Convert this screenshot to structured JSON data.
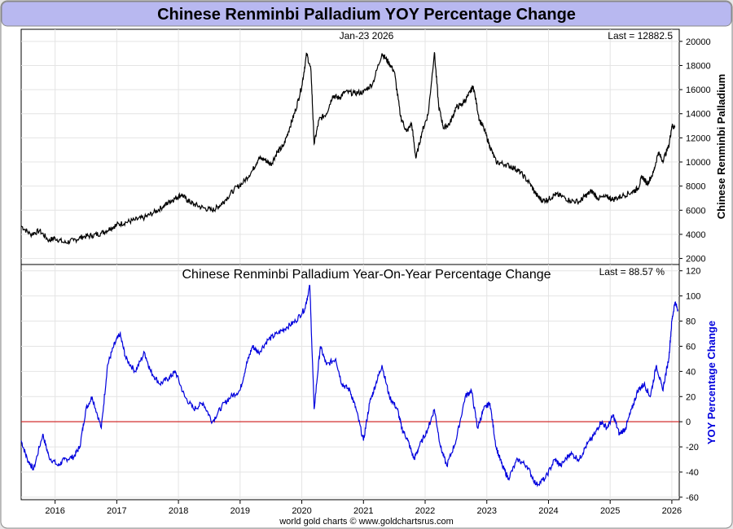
{
  "title": "Chinese Renminbi Palladium YOY Percentage Change",
  "footer": "world gold charts © www.goldchartsrus.com",
  "colors": {
    "price_line": "#000000",
    "yoy_line": "#0000dd",
    "zero_line": "#cc0000",
    "title_bar": "#b8b8f0",
    "grid": "#e4e4e4"
  },
  "chart_data": [
    {
      "type": "line",
      "panel": "top",
      "date_label": "Jan-23  2026",
      "last_label": "Last = 12882.5",
      "ylabel": "Chinese Renminbi Palladium",
      "ylim": [
        1500,
        21000
      ],
      "yticks": [
        2000,
        4000,
        6000,
        8000,
        10000,
        12000,
        14000,
        16000,
        18000,
        20000
      ],
      "series": [
        {
          "values": [
            [
              2015.45,
              4700
            ],
            [
              2015.6,
              4000
            ],
            [
              2015.75,
              4300
            ],
            [
              2015.9,
              3500
            ],
            [
              2016.0,
              3700
            ],
            [
              2016.15,
              3300
            ],
            [
              2016.3,
              3500
            ],
            [
              2016.45,
              3800
            ],
            [
              2016.6,
              3900
            ],
            [
              2016.75,
              4100
            ],
            [
              2016.9,
              4500
            ],
            [
              2017.0,
              4800
            ],
            [
              2017.15,
              5000
            ],
            [
              2017.3,
              5200
            ],
            [
              2017.45,
              5400
            ],
            [
              2017.6,
              5800
            ],
            [
              2017.75,
              6300
            ],
            [
              2017.85,
              6700
            ],
            [
              2017.95,
              7000
            ],
            [
              2018.05,
              7300
            ],
            [
              2018.15,
              6800
            ],
            [
              2018.25,
              6500
            ],
            [
              2018.4,
              6200
            ],
            [
              2018.55,
              6000
            ],
            [
              2018.65,
              6300
            ],
            [
              2018.75,
              6800
            ],
            [
              2018.9,
              7700
            ],
            [
              2019.05,
              8300
            ],
            [
              2019.2,
              9300
            ],
            [
              2019.3,
              10300
            ],
            [
              2019.4,
              10200
            ],
            [
              2019.5,
              9800
            ],
            [
              2019.6,
              10800
            ],
            [
              2019.7,
              11300
            ],
            [
              2019.8,
              12800
            ],
            [
              2019.9,
              14300
            ],
            [
              2020.0,
              16300
            ],
            [
              2020.08,
              19000
            ],
            [
              2020.15,
              17500
            ],
            [
              2020.2,
              11500
            ],
            [
              2020.28,
              13500
            ],
            [
              2020.4,
              14000
            ],
            [
              2020.5,
              15500
            ],
            [
              2020.6,
              15300
            ],
            [
              2020.7,
              15800
            ],
            [
              2020.85,
              15700
            ],
            [
              2021.0,
              15800
            ],
            [
              2021.15,
              16500
            ],
            [
              2021.3,
              19000
            ],
            [
              2021.4,
              18300
            ],
            [
              2021.5,
              17500
            ],
            [
              2021.6,
              13800
            ],
            [
              2021.7,
              12500
            ],
            [
              2021.78,
              13200
            ],
            [
              2021.85,
              10300
            ],
            [
              2021.95,
              12500
            ],
            [
              2022.05,
              14000
            ],
            [
              2022.15,
              19100
            ],
            [
              2022.22,
              14600
            ],
            [
              2022.3,
              12800
            ],
            [
              2022.4,
              13200
            ],
            [
              2022.5,
              14500
            ],
            [
              2022.6,
              14800
            ],
            [
              2022.7,
              15500
            ],
            [
              2022.78,
              16300
            ],
            [
              2022.88,
              13500
            ],
            [
              2022.95,
              12800
            ],
            [
              2023.05,
              11300
            ],
            [
              2023.15,
              10000
            ],
            [
              2023.3,
              9800
            ],
            [
              2023.45,
              9500
            ],
            [
              2023.55,
              9100
            ],
            [
              2023.7,
              8200
            ],
            [
              2023.8,
              7300
            ],
            [
              2023.9,
              6800
            ],
            [
              2024.0,
              6900
            ],
            [
              2024.1,
              7300
            ],
            [
              2024.2,
              7200
            ],
            [
              2024.35,
              6800
            ],
            [
              2024.5,
              6700
            ],
            [
              2024.6,
              7200
            ],
            [
              2024.7,
              7600
            ],
            [
              2024.8,
              7000
            ],
            [
              2024.95,
              7100
            ],
            [
              2025.05,
              6900
            ],
            [
              2025.2,
              7200
            ],
            [
              2025.35,
              7500
            ],
            [
              2025.45,
              7800
            ],
            [
              2025.52,
              8800
            ],
            [
              2025.6,
              8200
            ],
            [
              2025.7,
              9100
            ],
            [
              2025.78,
              10800
            ],
            [
              2025.85,
              10100
            ],
            [
              2025.95,
              11300
            ],
            [
              2026.0,
              13000
            ],
            [
              2026.05,
              12882
            ]
          ]
        }
      ]
    },
    {
      "type": "line",
      "panel": "bottom",
      "title": "Chinese Renminbi Palladium Year-On-Year Percentage Change",
      "last_label": "Last = 88.57 %",
      "ylabel": "YOY Percentage Change",
      "ylim": [
        -62,
        125
      ],
      "yticks": [
        -60,
        -40,
        -20,
        0,
        20,
        40,
        60,
        80,
        100,
        120
      ],
      "reference_line": 0,
      "x_ticks": [
        2016,
        2017,
        2018,
        2019,
        2020,
        2021,
        2022,
        2023,
        2024,
        2025,
        2026
      ],
      "xlim": [
        2015.45,
        2026.12
      ],
      "series": [
        {
          "values": [
            [
              2015.45,
              -15
            ],
            [
              2015.55,
              -30
            ],
            [
              2015.65,
              -38
            ],
            [
              2015.8,
              -10
            ],
            [
              2015.9,
              -28
            ],
            [
              2016.05,
              -35
            ],
            [
              2016.15,
              -30
            ],
            [
              2016.3,
              -28
            ],
            [
              2016.4,
              -20
            ],
            [
              2016.5,
              10
            ],
            [
              2016.6,
              20
            ],
            [
              2016.75,
              -5
            ],
            [
              2016.85,
              45
            ],
            [
              2016.95,
              60
            ],
            [
              2017.05,
              70
            ],
            [
              2017.15,
              50
            ],
            [
              2017.3,
              40
            ],
            [
              2017.45,
              55
            ],
            [
              2017.55,
              40
            ],
            [
              2017.7,
              30
            ],
            [
              2017.85,
              35
            ],
            [
              2017.95,
              40
            ],
            [
              2018.1,
              20
            ],
            [
              2018.25,
              10
            ],
            [
              2018.4,
              15
            ],
            [
              2018.55,
              0
            ],
            [
              2018.7,
              12
            ],
            [
              2018.85,
              20
            ],
            [
              2019.0,
              25
            ],
            [
              2019.1,
              45
            ],
            [
              2019.2,
              60
            ],
            [
              2019.3,
              55
            ],
            [
              2019.45,
              65
            ],
            [
              2019.6,
              70
            ],
            [
              2019.75,
              75
            ],
            [
              2019.9,
              80
            ],
            [
              2020.05,
              90
            ],
            [
              2020.13,
              108
            ],
            [
              2020.2,
              10
            ],
            [
              2020.3,
              60
            ],
            [
              2020.4,
              45
            ],
            [
              2020.55,
              50
            ],
            [
              2020.65,
              30
            ],
            [
              2020.78,
              25
            ],
            [
              2020.88,
              10
            ],
            [
              2021.0,
              -15
            ],
            [
              2021.1,
              15
            ],
            [
              2021.2,
              30
            ],
            [
              2021.3,
              45
            ],
            [
              2021.42,
              20
            ],
            [
              2021.55,
              10
            ],
            [
              2021.62,
              -5
            ],
            [
              2021.72,
              -15
            ],
            [
              2021.82,
              -30
            ],
            [
              2021.9,
              -20
            ],
            [
              2022.05,
              -5
            ],
            [
              2022.15,
              10
            ],
            [
              2022.25,
              -20
            ],
            [
              2022.35,
              -35
            ],
            [
              2022.5,
              -15
            ],
            [
              2022.65,
              20
            ],
            [
              2022.75,
              25
            ],
            [
              2022.85,
              -5
            ],
            [
              2022.95,
              10
            ],
            [
              2023.05,
              15
            ],
            [
              2023.15,
              -20
            ],
            [
              2023.25,
              -35
            ],
            [
              2023.35,
              -45
            ],
            [
              2023.5,
              -30
            ],
            [
              2023.65,
              -35
            ],
            [
              2023.8,
              -50
            ],
            [
              2023.95,
              -45
            ],
            [
              2024.1,
              -30
            ],
            [
              2024.2,
              -35
            ],
            [
              2024.35,
              -25
            ],
            [
              2024.5,
              -30
            ],
            [
              2024.6,
              -20
            ],
            [
              2024.75,
              -10
            ],
            [
              2024.85,
              0
            ],
            [
              2024.95,
              -5
            ],
            [
              2025.05,
              5
            ],
            [
              2025.15,
              -10
            ],
            [
              2025.25,
              -5
            ],
            [
              2025.35,
              10
            ],
            [
              2025.45,
              25
            ],
            [
              2025.55,
              30
            ],
            [
              2025.65,
              20
            ],
            [
              2025.75,
              45
            ],
            [
              2025.85,
              25
            ],
            [
              2025.95,
              50
            ],
            [
              2026.0,
              80
            ],
            [
              2026.05,
              95
            ],
            [
              2026.1,
              88.57
            ]
          ]
        }
      ]
    }
  ]
}
